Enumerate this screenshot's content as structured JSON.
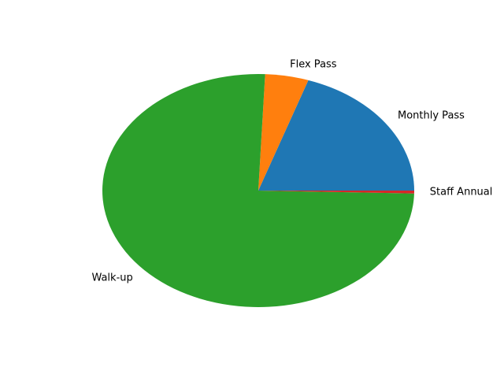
{
  "chart_data": {
    "type": "pie",
    "title": "",
    "categories": [
      "Monthly Pass",
      "Flex Pass",
      "Walk-up",
      "Staff Annual"
    ],
    "values": [
      19.8,
      4.5,
      75.3,
      0.4
    ],
    "colors": [
      "#1f77b4",
      "#ff7f0e",
      "#2ca02c",
      "#d62728"
    ],
    "start_angle_deg": 0,
    "direction": "counterclockwise",
    "legend": "none",
    "labels_position": "outside"
  }
}
